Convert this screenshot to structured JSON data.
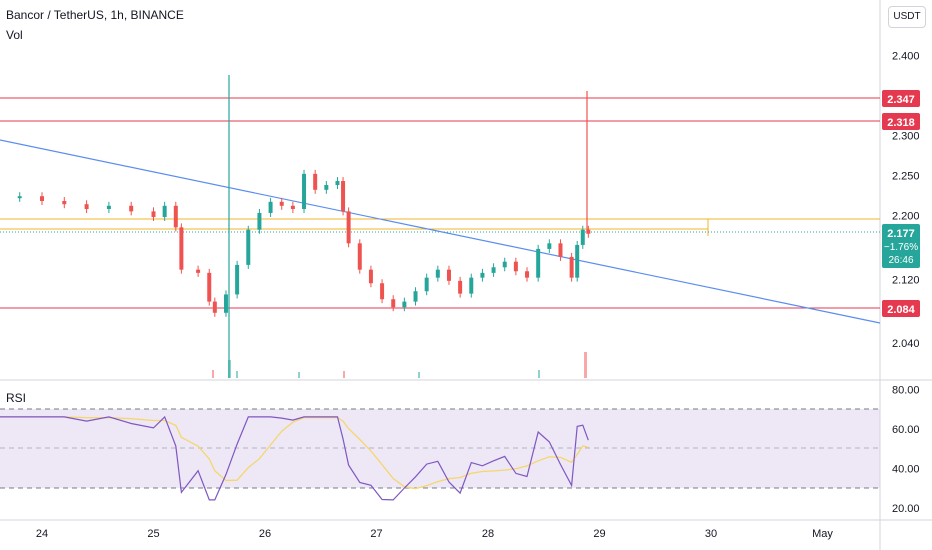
{
  "header": {
    "symbol_title": "Bancor / TetherUS, 1h, BINANCE",
    "volume_label": "Vol",
    "currency_button": "USDT"
  },
  "rsi_pane": {
    "label": "RSI"
  },
  "colors": {
    "up": "#26a69a",
    "down": "#ef5350",
    "resistance": "#e53950",
    "support_orange": "#f0b429",
    "trendline": "#5b8def",
    "rsi_line": "#7e57c2",
    "rsi_ma": "#f5d76e",
    "rsi_band": "#ede7f6",
    "last_price": "#26a69a"
  },
  "price_labels": {
    "r1": "2.347",
    "r2": "2.318",
    "last": "2.177",
    "change": "−1.76%",
    "countdown": "26:46",
    "s1": "2.084"
  },
  "chart_data": {
    "type": "candlestick",
    "title": "Bancor / TetherUS, 1h, BINANCE",
    "price_axis": {
      "range": [
        2.01,
        2.44
      ],
      "ticks": [
        "2.400",
        "2.300",
        "2.250",
        "2.200",
        "2.120",
        "2.040"
      ]
    },
    "date_axis": {
      "labels": [
        "24",
        "25",
        "26",
        "27",
        "28",
        "29",
        "30",
        "May"
      ],
      "day_positions": [
        24,
        25,
        26,
        27,
        28,
        29,
        30,
        31
      ]
    },
    "horizontal_levels": [
      {
        "price": 2.347,
        "label": "2.347",
        "kind": "resistance"
      },
      {
        "price": 2.318,
        "label": "2.318",
        "kind": "resistance"
      },
      {
        "price": 2.193,
        "kind": "support_orange"
      },
      {
        "price": 2.084,
        "label": "2.084",
        "kind": "support"
      }
    ],
    "trendline": {
      "start": [
        23.6,
        2.282
      ],
      "end": [
        31.5,
        2.074
      ]
    },
    "last_price": 2.177,
    "series": [
      {
        "t": 23.6,
        "c": 2.222
      },
      {
        "t": 23.8,
        "c": 2.224
      },
      {
        "t": 24.0,
        "c": 2.218
      },
      {
        "t": 24.2,
        "c": 2.214
      },
      {
        "t": 24.4,
        "c": 2.208
      },
      {
        "t": 24.6,
        "c": 2.212
      },
      {
        "t": 24.8,
        "c": 2.205
      },
      {
        "t": 25.0,
        "c": 2.198
      },
      {
        "t": 25.1,
        "c": 2.212
      },
      {
        "t": 25.2,
        "c": 2.185
      },
      {
        "t": 25.25,
        "c": 2.132
      },
      {
        "t": 25.4,
        "c": 2.128
      },
      {
        "t": 25.5,
        "c": 2.092
      },
      {
        "t": 25.55,
        "c": 2.078
      },
      {
        "t": 25.65,
        "c": 2.101
      },
      {
        "t": 25.75,
        "c": 2.138
      },
      {
        "t": 25.85,
        "c": 2.182
      },
      {
        "t": 25.95,
        "c": 2.203
      },
      {
        "t": 26.05,
        "c": 2.217
      },
      {
        "t": 26.15,
        "c": 2.212
      },
      {
        "t": 26.25,
        "c": 2.208
      },
      {
        "t": 26.35,
        "c": 2.252
      },
      {
        "t": 26.45,
        "c": 2.232
      },
      {
        "t": 26.55,
        "c": 2.238
      },
      {
        "t": 26.65,
        "c": 2.243
      },
      {
        "t": 26.7,
        "c": 2.205
      },
      {
        "t": 26.75,
        "c": 2.165
      },
      {
        "t": 26.85,
        "c": 2.132
      },
      {
        "t": 26.95,
        "c": 2.115
      },
      {
        "t": 27.05,
        "c": 2.095
      },
      {
        "t": 27.15,
        "c": 2.085
      },
      {
        "t": 27.25,
        "c": 2.092
      },
      {
        "t": 27.35,
        "c": 2.105
      },
      {
        "t": 27.45,
        "c": 2.122
      },
      {
        "t": 27.55,
        "c": 2.132
      },
      {
        "t": 27.65,
        "c": 2.118
      },
      {
        "t": 27.75,
        "c": 2.102
      },
      {
        "t": 27.85,
        "c": 2.122
      },
      {
        "t": 27.95,
        "c": 2.128
      },
      {
        "t": 28.05,
        "c": 2.135
      },
      {
        "t": 28.15,
        "c": 2.142
      },
      {
        "t": 28.25,
        "c": 2.13
      },
      {
        "t": 28.35,
        "c": 2.122
      },
      {
        "t": 28.45,
        "c": 2.158
      },
      {
        "t": 28.55,
        "c": 2.165
      },
      {
        "t": 28.65,
        "c": 2.148
      },
      {
        "t": 28.75,
        "c": 2.122
      },
      {
        "t": 28.8,
        "c": 2.163
      },
      {
        "t": 28.85,
        "c": 2.182
      },
      {
        "t": 28.9,
        "c": 2.177
      }
    ],
    "rsi_axis": {
      "range": [
        15,
        85
      ],
      "ticks": [
        "80.00",
        "60.00",
        "40.00",
        "20.00"
      ],
      "band": [
        30,
        70
      ]
    }
  }
}
